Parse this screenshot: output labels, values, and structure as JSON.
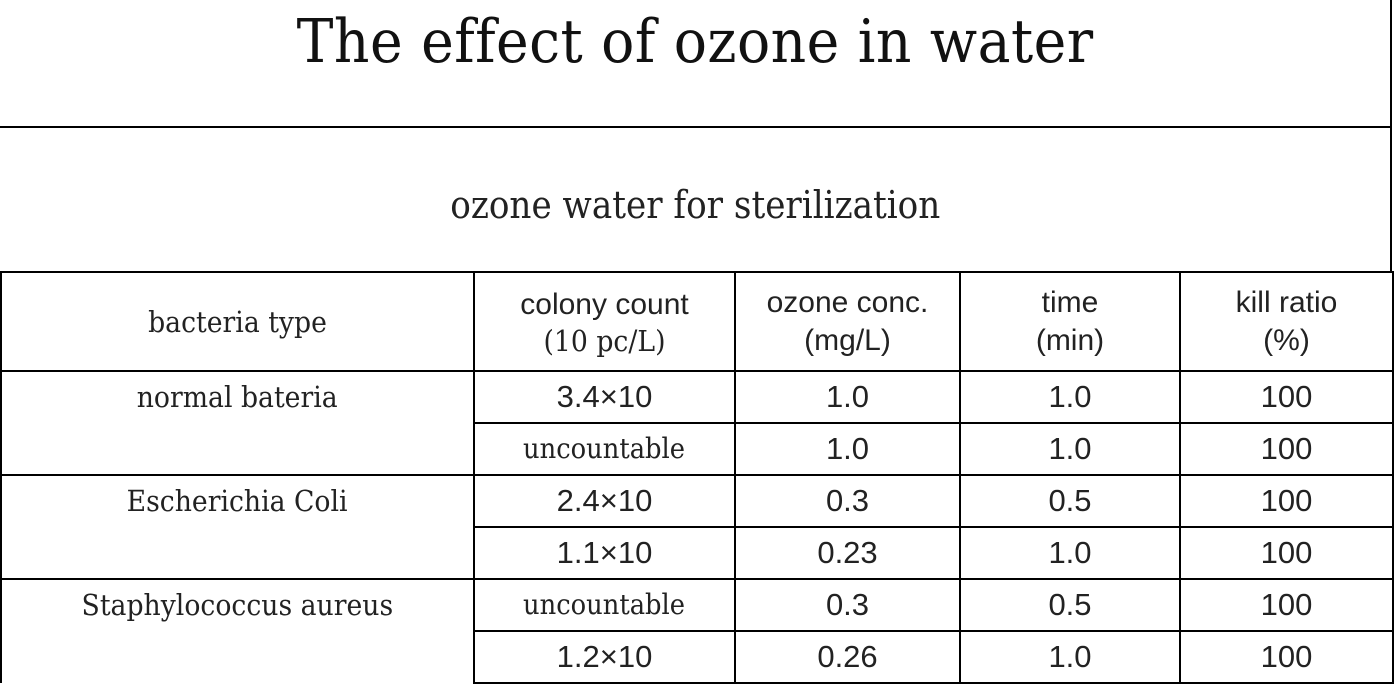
{
  "title": "The effect of ozone in water",
  "subtitle": "ozone water for sterilization",
  "table": {
    "headers": [
      {
        "line1": "bacteria type",
        "line2": ""
      },
      {
        "line1": "colony count",
        "line2": "(10 pc/L)"
      },
      {
        "line1": "ozone conc.",
        "line2": "(mg/L)"
      },
      {
        "line1": "time",
        "line2": "(min)"
      },
      {
        "line1": "kill ratio",
        "line2": "(%)"
      }
    ],
    "groups": [
      {
        "name": "normal bateria",
        "rows": [
          {
            "colony": "3.4×10",
            "conc": "1.0",
            "time": "1.0",
            "kill": "100"
          },
          {
            "colony": "uncountable",
            "conc": "1.0",
            "time": "1.0",
            "kill": "100"
          }
        ]
      },
      {
        "name": "Escherichia Coli",
        "rows": [
          {
            "colony": "2.4×10",
            "conc": "0.3",
            "time": "0.5",
            "kill": "100"
          },
          {
            "colony": "1.1×10",
            "conc": "0.23",
            "time": "1.0",
            "kill": "100"
          }
        ]
      },
      {
        "name": "Staphylococcus aureus",
        "rows": [
          {
            "colony": "uncountable",
            "conc": "0.3",
            "time": "0.5",
            "kill": "100"
          },
          {
            "colony": "1.2×10",
            "conc": "0.26",
            "time": "1.0",
            "kill": "100"
          }
        ]
      }
    ]
  }
}
